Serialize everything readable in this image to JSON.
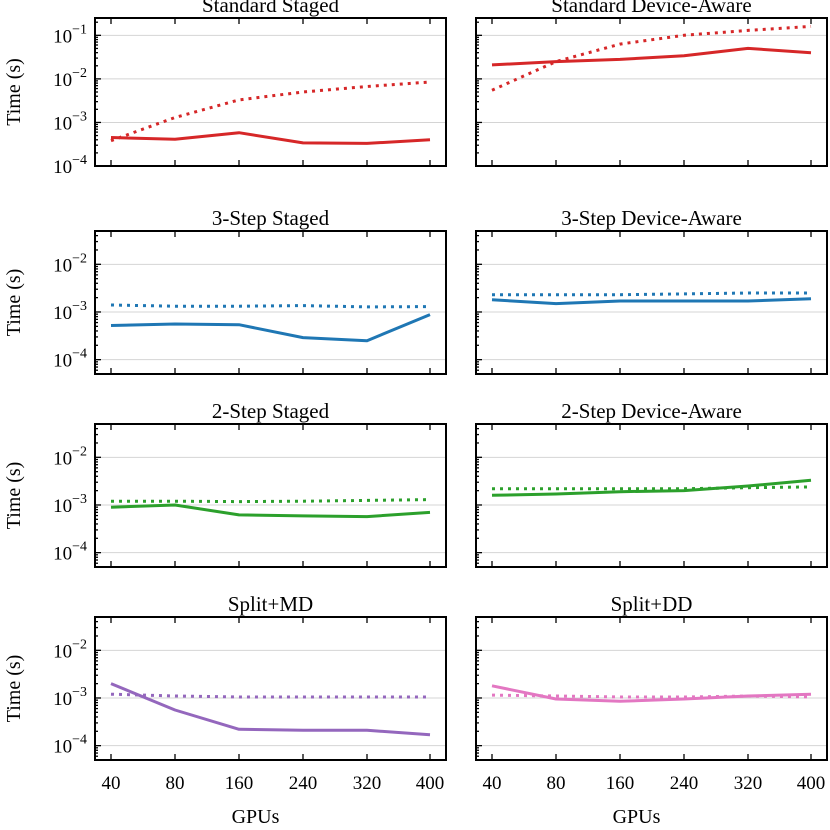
{
  "figure": {
    "x_label": "GPUs",
    "y_label": "Time (s)"
  },
  "chart_data": [
    {
      "type": "line",
      "title": "Standard Staged",
      "xlabel": "",
      "ylabel": "Time (s)",
      "x": [
        40,
        80,
        160,
        240,
        320,
        400
      ],
      "x_ticks": [
        "40",
        "80",
        "160",
        "240",
        "320",
        "400"
      ],
      "y_scale": "log",
      "ylim": [
        0.0001,
        0.25
      ],
      "y_ticks": [
        {
          "base": "10",
          "exp": "−4",
          "value": 0.0001
        },
        {
          "base": "10",
          "exp": "−3",
          "value": 0.001
        },
        {
          "base": "10",
          "exp": "−2",
          "value": 0.01
        },
        {
          "base": "10",
          "exp": "−1",
          "value": 0.1
        }
      ],
      "color": "#d62728",
      "series": [
        {
          "name": "solid",
          "style": "solid",
          "values": [
            0.00045,
            0.00041,
            0.00058,
            0.00034,
            0.00033,
            0.0004
          ]
        },
        {
          "name": "dotted",
          "style": "dotted",
          "values": [
            0.00038,
            0.0013,
            0.0033,
            0.005,
            0.0067,
            0.0085
          ]
        }
      ]
    },
    {
      "type": "line",
      "title": "Standard Device-Aware",
      "xlabel": "",
      "ylabel": "",
      "x": [
        40,
        80,
        160,
        240,
        320,
        400
      ],
      "x_ticks": [
        "40",
        "80",
        "160",
        "240",
        "320",
        "400"
      ],
      "y_scale": "log",
      "ylim": [
        0.0001,
        0.25
      ],
      "y_ticks": [],
      "color": "#d62728",
      "series": [
        {
          "name": "solid",
          "style": "solid",
          "values": [
            0.021,
            0.025,
            0.028,
            0.034,
            0.05,
            0.04
          ]
        },
        {
          "name": "dotted",
          "style": "dotted",
          "values": [
            0.0055,
            0.025,
            0.063,
            0.1,
            0.13,
            0.16
          ]
        }
      ]
    },
    {
      "type": "line",
      "title": "3-Step Staged",
      "xlabel": "",
      "ylabel": "Time (s)",
      "x": [
        40,
        80,
        160,
        240,
        320,
        400
      ],
      "x_ticks": [
        "40",
        "80",
        "160",
        "240",
        "320",
        "400"
      ],
      "y_scale": "log",
      "ylim": [
        5e-05,
        0.05
      ],
      "y_ticks": [
        {
          "base": "10",
          "exp": "−4",
          "value": 0.0001
        },
        {
          "base": "10",
          "exp": "−3",
          "value": 0.001
        },
        {
          "base": "10",
          "exp": "−2",
          "value": 0.01
        }
      ],
      "color": "#1f77b4",
      "series": [
        {
          "name": "solid",
          "style": "solid",
          "values": [
            0.00052,
            0.00056,
            0.00054,
            0.00029,
            0.00025,
            0.00088
          ]
        },
        {
          "name": "dotted",
          "style": "dotted",
          "values": [
            0.0014,
            0.00132,
            0.00132,
            0.00136,
            0.00128,
            0.0013
          ]
        }
      ]
    },
    {
      "type": "line",
      "title": "3-Step Device-Aware",
      "xlabel": "",
      "ylabel": "",
      "x": [
        40,
        80,
        160,
        240,
        320,
        400
      ],
      "x_ticks": [
        "40",
        "80",
        "160",
        "240",
        "320",
        "400"
      ],
      "y_scale": "log",
      "ylim": [
        5e-05,
        0.05
      ],
      "y_ticks": [],
      "color": "#1f77b4",
      "series": [
        {
          "name": "solid",
          "style": "solid",
          "values": [
            0.0018,
            0.0015,
            0.0017,
            0.0017,
            0.0017,
            0.0019
          ]
        },
        {
          "name": "dotted",
          "style": "dotted",
          "values": [
            0.0023,
            0.0023,
            0.0023,
            0.0024,
            0.0025,
            0.0025
          ]
        }
      ]
    },
    {
      "type": "line",
      "title": "2-Step Staged",
      "xlabel": "",
      "ylabel": "Time (s)",
      "x": [
        40,
        80,
        160,
        240,
        320,
        400
      ],
      "x_ticks": [
        "40",
        "80",
        "160",
        "240",
        "320",
        "400"
      ],
      "y_scale": "log",
      "ylim": [
        5e-05,
        0.05
      ],
      "y_ticks": [
        {
          "base": "10",
          "exp": "−4",
          "value": 0.0001
        },
        {
          "base": "10",
          "exp": "−3",
          "value": 0.001
        },
        {
          "base": "10",
          "exp": "−2",
          "value": 0.01
        }
      ],
      "color": "#2ca02c",
      "series": [
        {
          "name": "solid",
          "style": "solid",
          "values": [
            0.0009,
            0.001,
            0.00062,
            0.00059,
            0.00057,
            0.0007
          ]
        },
        {
          "name": "dotted",
          "style": "dotted",
          "values": [
            0.0012,
            0.0012,
            0.00118,
            0.0012,
            0.00125,
            0.0013
          ]
        }
      ]
    },
    {
      "type": "line",
      "title": "2-Step Device-Aware",
      "xlabel": "",
      "ylabel": "",
      "x": [
        40,
        80,
        160,
        240,
        320,
        400
      ],
      "x_ticks": [
        "40",
        "80",
        "160",
        "240",
        "320",
        "400"
      ],
      "y_scale": "log",
      "ylim": [
        5e-05,
        0.05
      ],
      "y_ticks": [],
      "color": "#2ca02c",
      "series": [
        {
          "name": "solid",
          "style": "solid",
          "values": [
            0.0016,
            0.0017,
            0.0019,
            0.002,
            0.0025,
            0.0033
          ]
        },
        {
          "name": "dotted",
          "style": "dotted",
          "values": [
            0.0022,
            0.0022,
            0.0022,
            0.0022,
            0.0023,
            0.0024
          ]
        }
      ]
    },
    {
      "type": "line",
      "title": "Split+MD",
      "xlabel": "GPUs",
      "ylabel": "Time (s)",
      "x": [
        40,
        80,
        160,
        240,
        320,
        400
      ],
      "x_ticks": [
        "40",
        "80",
        "160",
        "240",
        "320",
        "400"
      ],
      "y_scale": "log",
      "ylim": [
        5e-05,
        0.05
      ],
      "y_ticks": [
        {
          "base": "10",
          "exp": "−4",
          "value": 0.0001
        },
        {
          "base": "10",
          "exp": "−3",
          "value": 0.001
        },
        {
          "base": "10",
          "exp": "−2",
          "value": 0.01
        }
      ],
      "color": "#9467bd",
      "series": [
        {
          "name": "solid",
          "style": "solid",
          "values": [
            0.002,
            0.00056,
            0.00022,
            0.00021,
            0.00021,
            0.00017
          ]
        },
        {
          "name": "dotted",
          "style": "dotted",
          "values": [
            0.0012,
            0.0011,
            0.00105,
            0.00105,
            0.00105,
            0.00105
          ]
        }
      ]
    },
    {
      "type": "line",
      "title": "Split+DD",
      "xlabel": "GPUs",
      "ylabel": "",
      "x": [
        40,
        80,
        160,
        240,
        320,
        400
      ],
      "x_ticks": [
        "40",
        "80",
        "160",
        "240",
        "320",
        "400"
      ],
      "y_scale": "log",
      "ylim": [
        5e-05,
        0.05
      ],
      "y_ticks": [],
      "color": "#e377c2",
      "series": [
        {
          "name": "solid",
          "style": "solid",
          "values": [
            0.0018,
            0.00095,
            0.00085,
            0.00095,
            0.0011,
            0.0012
          ]
        },
        {
          "name": "dotted",
          "style": "dotted",
          "values": [
            0.00115,
            0.0011,
            0.00105,
            0.00105,
            0.0011,
            0.00105
          ]
        }
      ]
    }
  ]
}
